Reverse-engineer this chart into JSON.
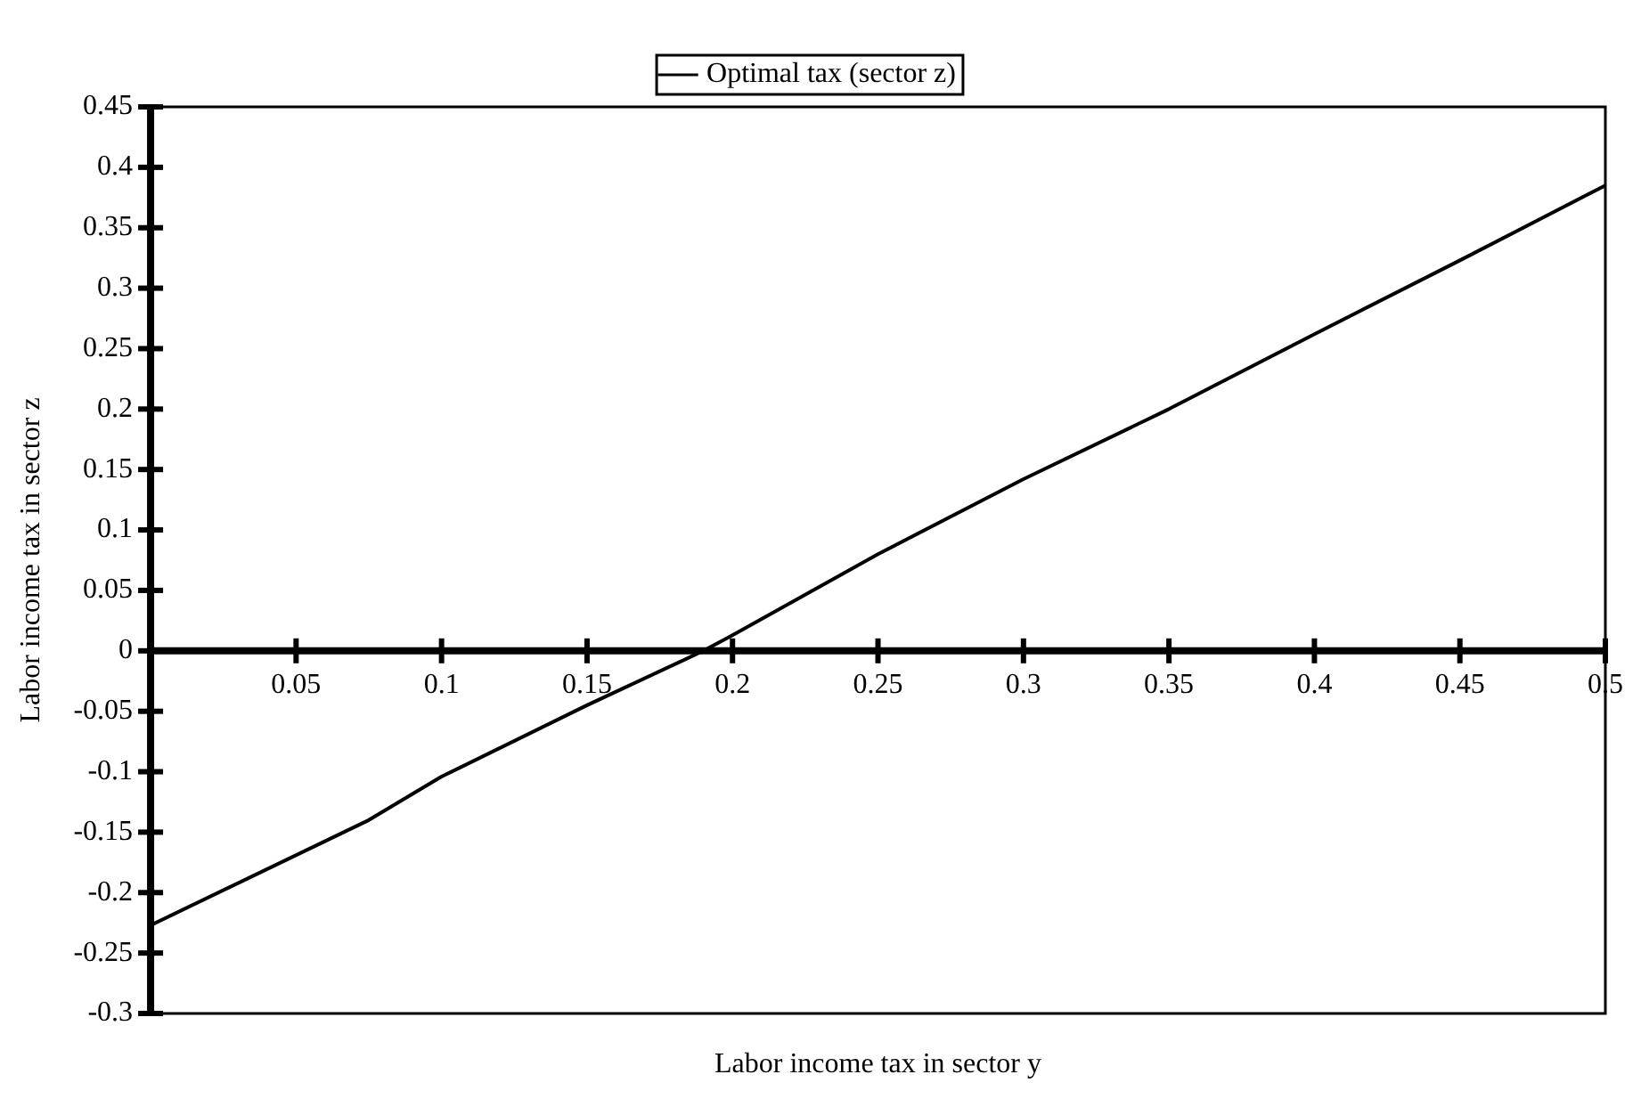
{
  "chart_data": {
    "type": "line",
    "xlabel": "Labor income tax in sector y",
    "ylabel": "Labor income tax in sector z",
    "x": [
      0,
      0.075,
      0.1,
      0.15,
      0.19,
      0.2,
      0.25,
      0.3,
      0.35,
      0.4,
      0.45,
      0.5
    ],
    "series": [
      {
        "name": "Optimal tax (sector z)",
        "color": "#000000",
        "values": [
          -0.227,
          -0.14,
          -0.104,
          -0.045,
          0,
          0.013,
          0.08,
          0.142,
          0.2,
          0.262,
          0.323,
          0.385
        ]
      }
    ],
    "xlim": [
      0,
      0.5
    ],
    "xticks": [
      0.05,
      0.1,
      0.15,
      0.2,
      0.25,
      0.3,
      0.35,
      0.4,
      0.45,
      0.5
    ],
    "ylim": [
      -0.3,
      0.45
    ],
    "yticks": [
      -0.3,
      -0.25,
      -0.2,
      -0.15,
      -0.1,
      -0.05,
      0,
      0.05,
      0.1,
      0.15,
      0.2,
      0.25,
      0.3,
      0.35,
      0.4,
      0.45
    ],
    "legend": "top",
    "marker": "none",
    "line_style": "solid"
  }
}
